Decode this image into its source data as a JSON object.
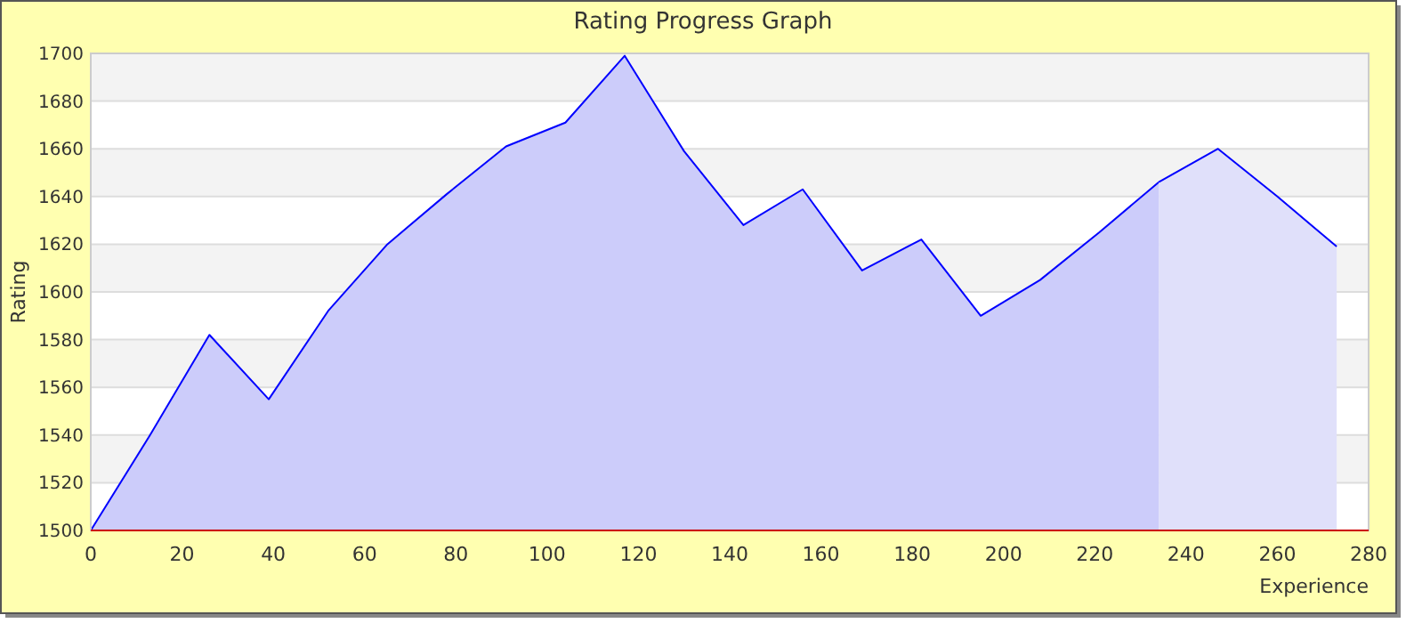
{
  "chart_data": {
    "type": "area",
    "title": "Rating Progress Graph",
    "xlabel": "Experience",
    "ylabel": "Rating",
    "xlim": [
      0,
      280
    ],
    "xticks": [
      0,
      20,
      40,
      60,
      80,
      100,
      120,
      140,
      160,
      180,
      200,
      220,
      240,
      260,
      280
    ],
    "ylim": [
      1500,
      1700
    ],
    "yticks": [
      1500,
      1520,
      1540,
      1560,
      1580,
      1600,
      1620,
      1640,
      1660,
      1680,
      1700
    ],
    "grid": "y",
    "series": [
      {
        "color": "#ccccfa",
        "x": [
          0,
          13,
          26,
          39,
          52,
          65,
          78,
          91,
          104,
          117,
          130,
          143,
          156,
          169,
          182,
          195,
          208,
          221,
          234
        ],
        "values": [
          1500,
          1540,
          1582,
          1555,
          1592,
          1620,
          1641,
          1661,
          1671,
          1699,
          1659,
          1628,
          1643,
          1609,
          1622,
          1590,
          1605,
          1625,
          1646
        ]
      },
      {
        "color": "#e0e0fa",
        "x": [
          234,
          247,
          260,
          273
        ],
        "values": [
          1646,
          1660,
          1640,
          1619
        ]
      }
    ]
  }
}
